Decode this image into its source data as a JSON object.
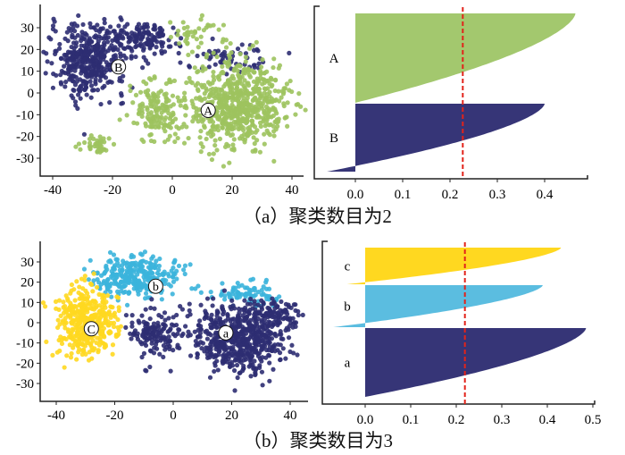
{
  "chart_data": [
    {
      "type": "scatter",
      "panel": "a-left",
      "xticks": [
        -40,
        -20,
        0,
        20,
        40
      ],
      "yticks": [
        -30,
        -20,
        -10,
        0,
        10,
        20,
        30
      ],
      "xlim": [
        -47,
        47
      ],
      "ylim": [
        -38,
        38
      ],
      "clusters": [
        {
          "label": "B",
          "color": "#2e2d72",
          "label_pos": [
            -18,
            12
          ],
          "components": [
            {
              "cx": -28,
              "cy": 15,
              "sx": 9,
              "sy": 12,
              "n": 420
            },
            {
              "cx": -10,
              "cy": 25,
              "sx": 8,
              "sy": 6,
              "n": 150
            },
            {
              "cx": 20,
              "cy": 15,
              "sx": 10,
              "sy": 5,
              "n": 60
            }
          ]
        },
        {
          "label": "A",
          "color": "#9dc35e",
          "label_pos": [
            12,
            -8
          ],
          "components": [
            {
              "cx": 22,
              "cy": -5,
              "sx": 11,
              "sy": 14,
              "n": 650
            },
            {
              "cx": -5,
              "cy": -8,
              "sx": 7,
              "sy": 10,
              "n": 160
            },
            {
              "cx": -25,
              "cy": -24,
              "sx": 5,
              "sy": 3,
              "n": 40
            },
            {
              "cx": 10,
              "cy": 28,
              "sx": 8,
              "sy": 5,
              "n": 40
            }
          ]
        }
      ]
    },
    {
      "type": "area",
      "panel": "a-right",
      "xticks": [
        "0.0",
        "0.1",
        "0.2",
        "0.3",
        "0.4"
      ],
      "xlim": [
        -0.06,
        0.5
      ],
      "average_line": 0.227,
      "clusters": [
        {
          "label": "A",
          "color": "#a3c86e",
          "min": 0.0,
          "max": 0.465,
          "knee": 0.227
        },
        {
          "label": "B",
          "color": "#363577",
          "min": -0.06,
          "max": 0.4,
          "knee": 0.225
        }
      ]
    },
    {
      "type": "scatter",
      "panel": "b-left",
      "xticks": [
        -40,
        -20,
        0,
        20,
        40
      ],
      "yticks": [
        -30,
        -20,
        -10,
        0,
        10,
        20,
        30
      ],
      "xlim": [
        -47,
        47
      ],
      "ylim": [
        -38,
        38
      ],
      "clusters": [
        {
          "label": "b",
          "color": "#3bb4dc",
          "label_pos": [
            -6,
            18
          ],
          "components": [
            {
              "cx": -12,
              "cy": 23,
              "sx": 10,
              "sy": 7,
              "n": 300
            },
            {
              "cx": 25,
              "cy": 14,
              "sx": 8,
              "sy": 4,
              "n": 80
            }
          ]
        },
        {
          "label": "C",
          "color": "#ffd820",
          "label_pos": [
            -28,
            -3
          ],
          "components": [
            {
              "cx": -30,
              "cy": 0,
              "sx": 7,
              "sy": 12,
              "n": 420
            }
          ]
        },
        {
          "label": "a",
          "color": "#2e2d72",
          "label_pos": [
            18,
            -5
          ],
          "components": [
            {
              "cx": 22,
              "cy": -8,
              "sx": 11,
              "sy": 12,
              "n": 600
            },
            {
              "cx": -6,
              "cy": -5,
              "sx": 6,
              "sy": 8,
              "n": 140
            },
            {
              "cx": 35,
              "cy": 5,
              "sx": 6,
              "sy": 6,
              "n": 80
            }
          ]
        }
      ]
    },
    {
      "type": "area",
      "panel": "b-right",
      "xticks": [
        "0.0",
        "0.1",
        "0.2",
        "0.3",
        "0.4",
        "0.5"
      ],
      "xlim": [
        -0.07,
        0.5
      ],
      "average_line": 0.219,
      "clusters": [
        {
          "label": "c",
          "color": "#ffd820",
          "min": -0.04,
          "max": 0.43,
          "knee": 0.21
        },
        {
          "label": "b",
          "color": "#5bbde0",
          "min": -0.07,
          "max": 0.39,
          "knee": 0.2
        },
        {
          "label": "a",
          "color": "#363577",
          "min": 0.0,
          "max": 0.485,
          "knee": 0.21
        }
      ]
    }
  ],
  "captions": {
    "a": "（a）聚类数目为2",
    "b": "（b）聚类数目为3"
  }
}
